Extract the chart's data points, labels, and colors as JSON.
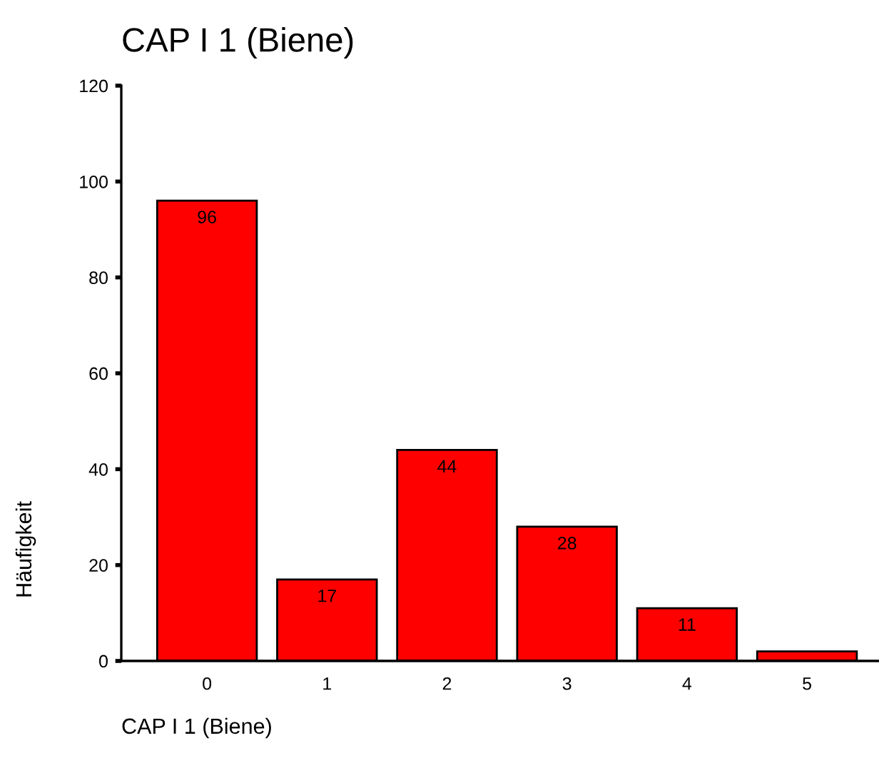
{
  "chart_data": {
    "type": "bar",
    "title": "CAP I 1 (Biene)",
    "xlabel": "CAP I 1 (Biene)",
    "ylabel": "Häufigkeit",
    "categories": [
      "0",
      "1",
      "2",
      "3",
      "4",
      "5"
    ],
    "values": [
      96,
      17,
      44,
      28,
      11,
      2
    ],
    "value_labels": [
      "96",
      "17",
      "44",
      "28",
      "11",
      null
    ],
    "color": "#ff0000",
    "ylim": [
      0,
      120
    ],
    "yticks": [
      0,
      20,
      40,
      60,
      80,
      100,
      120
    ],
    "grid": false,
    "legend": false
  }
}
